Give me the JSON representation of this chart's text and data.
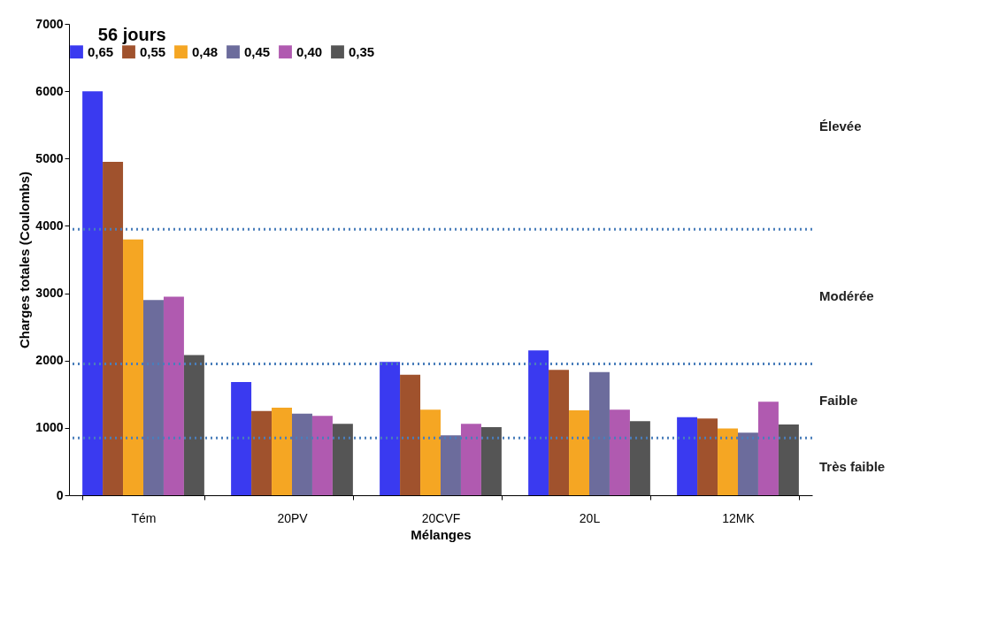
{
  "chart_data": {
    "type": "bar",
    "title": "56 jours",
    "xlabel": "Mélanges",
    "ylabel": "Charges totales (Coulombs)",
    "categories": [
      "Tém",
      "20PV",
      "20CVF",
      "20L",
      "12MK"
    ],
    "series": [
      {
        "name": "0,65",
        "color": "#3a3af0",
        "values": [
          6000,
          1680,
          1980,
          2150,
          1160
        ]
      },
      {
        "name": "0,55",
        "color": "#a0522d",
        "values": [
          4950,
          1250,
          1790,
          1860,
          1140
        ]
      },
      {
        "name": "0,48",
        "color": "#f5a623",
        "values": [
          3800,
          1300,
          1270,
          1260,
          990
        ]
      },
      {
        "name": "0,45",
        "color": "#6c6c9c",
        "values": [
          2900,
          1210,
          890,
          1830,
          930
        ]
      },
      {
        "name": "0,40",
        "color": "#b05ab0",
        "values": [
          2950,
          1180,
          1060,
          1270,
          1390
        ]
      },
      {
        "name": "0,35",
        "color": "#555555",
        "values": [
          2080,
          1060,
          1010,
          1100,
          1050
        ]
      }
    ],
    "ylim": [
      0,
      7000
    ],
    "yticks": [
      0,
      1000,
      2000,
      3000,
      4000,
      5000,
      6000,
      7000
    ],
    "ref_lines": [
      {
        "axis": "y",
        "value": 3950,
        "color": "#4a7ebb",
        "line_style": "dotted"
      },
      {
        "axis": "y",
        "value": 1950,
        "color": "#4a7ebb",
        "line_style": "dotted"
      },
      {
        "axis": "y",
        "value": 850,
        "color": "#4a7ebb",
        "line_style": "dotted"
      }
    ],
    "annotations": [
      "Élevée",
      "Modérée",
      "Faible",
      "Très faible"
    ],
    "legend": "top",
    "grid": false
  }
}
